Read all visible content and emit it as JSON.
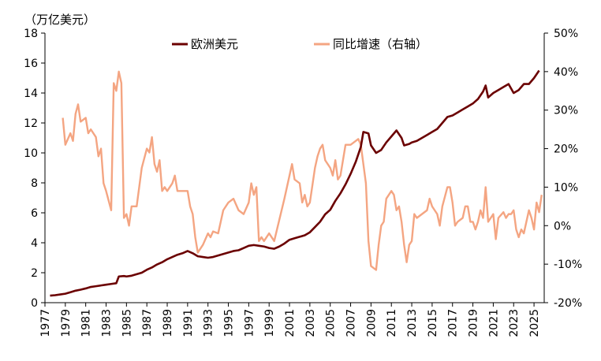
{
  "chart_data": {
    "type": "line",
    "left_axis": {
      "unit_label": "（万亿美元）",
      "ylim": [
        0,
        18
      ],
      "ticks": [
        "0",
        "2",
        "4",
        "6",
        "8",
        "10",
        "12",
        "14",
        "16",
        "18"
      ]
    },
    "right_axis": {
      "ylim": [
        -20,
        50
      ],
      "ticks": [
        {
          "label": "-20%",
          "color": "#ff0000"
        },
        {
          "label": "-10%",
          "color": "#ff0000"
        },
        {
          "label": "0%",
          "color": "#000000"
        },
        {
          "label": "10%",
          "color": "#000000"
        },
        {
          "label": "20%",
          "color": "#000000"
        },
        {
          "label": "30%",
          "color": "#000000"
        },
        {
          "label": "40%",
          "color": "#000000"
        },
        {
          "label": "50%",
          "color": "#000000"
        }
      ]
    },
    "x_axis": {
      "xlim": [
        1977,
        2026
      ],
      "ticks": [
        "1977",
        "1979",
        "1981",
        "1983",
        "1985",
        "1987",
        "1989",
        "1991",
        "1993",
        "1995",
        "1997",
        "1999",
        "2001",
        "2003",
        "2005",
        "2007",
        "2009",
        "2011",
        "2013",
        "2015",
        "2017",
        "2019",
        "2021",
        "2023",
        "2025"
      ]
    },
    "legend_position": "top",
    "series": [
      {
        "name": "欧洲美元",
        "axis": "left",
        "color": "#6b0000",
        "points": [
          [
            1977.5,
            0.47
          ],
          [
            1978.0,
            0.5
          ],
          [
            1978.5,
            0.55
          ],
          [
            1979.0,
            0.6
          ],
          [
            1979.5,
            0.7
          ],
          [
            1980.0,
            0.8
          ],
          [
            1980.5,
            0.87
          ],
          [
            1981.0,
            0.95
          ],
          [
            1981.5,
            1.05
          ],
          [
            1982.0,
            1.1
          ],
          [
            1982.5,
            1.15
          ],
          [
            1983.0,
            1.2
          ],
          [
            1983.5,
            1.25
          ],
          [
            1984.0,
            1.3
          ],
          [
            1984.25,
            1.75
          ],
          [
            1984.75,
            1.78
          ],
          [
            1985.0,
            1.75
          ],
          [
            1985.5,
            1.8
          ],
          [
            1986.0,
            1.9
          ],
          [
            1986.5,
            2.0
          ],
          [
            1987.0,
            2.2
          ],
          [
            1987.5,
            2.35
          ],
          [
            1988.0,
            2.55
          ],
          [
            1988.5,
            2.7
          ],
          [
            1989.0,
            2.9
          ],
          [
            1989.5,
            3.05
          ],
          [
            1990.0,
            3.2
          ],
          [
            1990.5,
            3.3
          ],
          [
            1991.0,
            3.45
          ],
          [
            1991.5,
            3.3
          ],
          [
            1992.0,
            3.1
          ],
          [
            1992.5,
            3.05
          ],
          [
            1993.0,
            3.0
          ],
          [
            1993.5,
            3.05
          ],
          [
            1994.0,
            3.15
          ],
          [
            1994.5,
            3.25
          ],
          [
            1995.0,
            3.35
          ],
          [
            1995.5,
            3.45
          ],
          [
            1996.0,
            3.5
          ],
          [
            1996.5,
            3.65
          ],
          [
            1997.0,
            3.8
          ],
          [
            1997.5,
            3.85
          ],
          [
            1998.0,
            3.8
          ],
          [
            1998.5,
            3.75
          ],
          [
            1999.0,
            3.65
          ],
          [
            1999.5,
            3.6
          ],
          [
            2000.0,
            3.75
          ],
          [
            2000.5,
            3.95
          ],
          [
            2001.0,
            4.2
          ],
          [
            2001.5,
            4.3
          ],
          [
            2002.0,
            4.4
          ],
          [
            2002.5,
            4.5
          ],
          [
            2003.0,
            4.7
          ],
          [
            2003.5,
            5.05
          ],
          [
            2004.0,
            5.4
          ],
          [
            2004.5,
            5.9
          ],
          [
            2005.0,
            6.2
          ],
          [
            2005.5,
            6.8
          ],
          [
            2006.0,
            7.3
          ],
          [
            2006.5,
            7.9
          ],
          [
            2007.0,
            8.6
          ],
          [
            2007.5,
            9.4
          ],
          [
            2008.0,
            10.4
          ],
          [
            2008.25,
            11.4
          ],
          [
            2008.75,
            11.3
          ],
          [
            2009.0,
            10.5
          ],
          [
            2009.5,
            10.0
          ],
          [
            2010.0,
            10.2
          ],
          [
            2010.5,
            10.7
          ],
          [
            2011.0,
            11.1
          ],
          [
            2011.5,
            11.5
          ],
          [
            2012.0,
            11.0
          ],
          [
            2012.25,
            10.5
          ],
          [
            2012.75,
            10.6
          ],
          [
            2013.0,
            10.7
          ],
          [
            2013.5,
            10.8
          ],
          [
            2014.0,
            11.0
          ],
          [
            2014.5,
            11.2
          ],
          [
            2015.0,
            11.4
          ],
          [
            2015.5,
            11.6
          ],
          [
            2016.0,
            12.0
          ],
          [
            2016.5,
            12.4
          ],
          [
            2017.0,
            12.5
          ],
          [
            2017.5,
            12.7
          ],
          [
            2018.0,
            12.9
          ],
          [
            2018.5,
            13.1
          ],
          [
            2019.0,
            13.3
          ],
          [
            2019.5,
            13.6
          ],
          [
            2020.0,
            14.1
          ],
          [
            2020.25,
            14.5
          ],
          [
            2020.5,
            13.7
          ],
          [
            2021.0,
            14.0
          ],
          [
            2021.5,
            14.2
          ],
          [
            2022.0,
            14.4
          ],
          [
            2022.5,
            14.6
          ],
          [
            2023.0,
            14.0
          ],
          [
            2023.5,
            14.2
          ],
          [
            2024.0,
            14.6
          ],
          [
            2024.5,
            14.6
          ],
          [
            2025.0,
            15.0
          ],
          [
            2025.5,
            15.5
          ]
        ]
      },
      {
        "name": "同比增速（右轴）",
        "axis": "right",
        "color": "#f4a582",
        "points": [
          [
            1978.75,
            28.0
          ],
          [
            1979.0,
            21.0
          ],
          [
            1979.5,
            24.0
          ],
          [
            1979.75,
            22.0
          ],
          [
            1980.0,
            29.0
          ],
          [
            1980.25,
            31.5
          ],
          [
            1980.5,
            27.0
          ],
          [
            1981.0,
            28.0
          ],
          [
            1981.25,
            24.0
          ],
          [
            1981.5,
            25.0
          ],
          [
            1982.0,
            23.0
          ],
          [
            1982.25,
            18.0
          ],
          [
            1982.5,
            20.0
          ],
          [
            1982.75,
            11.0
          ],
          [
            1983.0,
            9.0
          ],
          [
            1983.5,
            4.0
          ],
          [
            1983.75,
            37.0
          ],
          [
            1984.0,
            35.0
          ],
          [
            1984.25,
            40.0
          ],
          [
            1984.5,
            37.0
          ],
          [
            1984.75,
            2.0
          ],
          [
            1985.0,
            3.0
          ],
          [
            1985.25,
            0.0
          ],
          [
            1985.5,
            5.0
          ],
          [
            1986.0,
            5.0
          ],
          [
            1986.5,
            15.0
          ],
          [
            1987.0,
            20.0
          ],
          [
            1987.25,
            19.0
          ],
          [
            1987.5,
            23.0
          ],
          [
            1987.75,
            16.0
          ],
          [
            1988.0,
            14.0
          ],
          [
            1988.25,
            17.0
          ],
          [
            1988.5,
            9.0
          ],
          [
            1988.75,
            10.0
          ],
          [
            1989.0,
            9.0
          ],
          [
            1989.5,
            11.0
          ],
          [
            1989.75,
            13.0
          ],
          [
            1990.0,
            9.0
          ],
          [
            1990.5,
            9.0
          ],
          [
            1991.0,
            9.0
          ],
          [
            1991.25,
            5.0
          ],
          [
            1991.5,
            3.0
          ],
          [
            1991.75,
            -3.0
          ],
          [
            1992.0,
            -7.0
          ],
          [
            1992.5,
            -5.0
          ],
          [
            1993.0,
            -2.0
          ],
          [
            1993.25,
            -3.0
          ],
          [
            1993.5,
            -1.5
          ],
          [
            1994.0,
            -2.0
          ],
          [
            1994.5,
            4.0
          ],
          [
            1995.0,
            6.0
          ],
          [
            1995.5,
            7.0
          ],
          [
            1996.0,
            4.0
          ],
          [
            1996.5,
            3.0
          ],
          [
            1997.0,
            6.0
          ],
          [
            1997.25,
            11.0
          ],
          [
            1997.5,
            8.0
          ],
          [
            1997.75,
            10.0
          ],
          [
            1998.0,
            -4.0
          ],
          [
            1998.25,
            -3.0
          ],
          [
            1998.5,
            -4.0
          ],
          [
            1998.75,
            -3.0
          ],
          [
            1999.0,
            -2.0
          ],
          [
            1999.5,
            -4.0
          ],
          [
            2000.0,
            1.5
          ],
          [
            2000.5,
            7.0
          ],
          [
            2001.0,
            13.0
          ],
          [
            2001.25,
            16.0
          ],
          [
            2001.5,
            12.0
          ],
          [
            2002.0,
            11.0
          ],
          [
            2002.25,
            6.0
          ],
          [
            2002.5,
            8.0
          ],
          [
            2002.75,
            5.0
          ],
          [
            2003.0,
            6.0
          ],
          [
            2003.5,
            15.0
          ],
          [
            2003.75,
            18.0
          ],
          [
            2004.0,
            20.0
          ],
          [
            2004.25,
            21.0
          ],
          [
            2004.5,
            17.0
          ],
          [
            2005.0,
            15.0
          ],
          [
            2005.25,
            13.0
          ],
          [
            2005.5,
            17.0
          ],
          [
            2005.75,
            12.0
          ],
          [
            2006.0,
            13.0
          ],
          [
            2006.5,
            21.0
          ],
          [
            2007.0,
            21.0
          ],
          [
            2007.5,
            22.0
          ],
          [
            2007.75,
            22.5
          ],
          [
            2008.0,
            21.0
          ],
          [
            2008.25,
            16.0
          ],
          [
            2008.5,
            11.0
          ],
          [
            2008.75,
            -4.0
          ],
          [
            2009.0,
            -10.5
          ],
          [
            2009.5,
            -11.5
          ],
          [
            2009.75,
            -5.0
          ],
          [
            2010.0,
            0.0
          ],
          [
            2010.25,
            1.0
          ],
          [
            2010.5,
            7.0
          ],
          [
            2011.0,
            9.0
          ],
          [
            2011.25,
            8.0
          ],
          [
            2011.5,
            4.0
          ],
          [
            2011.75,
            5.0
          ],
          [
            2012.0,
            1.0
          ],
          [
            2012.25,
            -5.0
          ],
          [
            2012.5,
            -9.5
          ],
          [
            2012.75,
            -5.0
          ],
          [
            2013.0,
            -4.0
          ],
          [
            2013.25,
            3.0
          ],
          [
            2013.5,
            2.0
          ],
          [
            2014.0,
            3.0
          ],
          [
            2014.5,
            4.0
          ],
          [
            2014.75,
            7.0
          ],
          [
            2015.0,
            5.0
          ],
          [
            2015.5,
            3.0
          ],
          [
            2015.75,
            0.0
          ],
          [
            2016.0,
            5.0
          ],
          [
            2016.5,
            10.0
          ],
          [
            2016.75,
            10.0
          ],
          [
            2017.0,
            6.0
          ],
          [
            2017.25,
            0.0
          ],
          [
            2017.5,
            1.0
          ],
          [
            2018.0,
            2.0
          ],
          [
            2018.25,
            5.0
          ],
          [
            2018.5,
            5.0
          ],
          [
            2018.75,
            1.0
          ],
          [
            2019.0,
            1.0
          ],
          [
            2019.25,
            -1.0
          ],
          [
            2019.5,
            1.0
          ],
          [
            2019.75,
            4.0
          ],
          [
            2020.0,
            2.0
          ],
          [
            2020.25,
            10.0
          ],
          [
            2020.5,
            1.0
          ],
          [
            2020.75,
            2.0
          ],
          [
            2021.0,
            3.0
          ],
          [
            2021.25,
            -3.5
          ],
          [
            2021.5,
            2.0
          ],
          [
            2022.0,
            3.5
          ],
          [
            2022.25,
            2.0
          ],
          [
            2022.5,
            3.0
          ],
          [
            2022.75,
            3.0
          ],
          [
            2023.0,
            4.0
          ],
          [
            2023.25,
            -1.0
          ],
          [
            2023.5,
            -3.0
          ],
          [
            2023.75,
            -1.0
          ],
          [
            2024.0,
            -2.0
          ],
          [
            2024.5,
            4.0
          ],
          [
            2024.75,
            2.0
          ],
          [
            2025.0,
            -1.0
          ],
          [
            2025.25,
            6.0
          ],
          [
            2025.5,
            3.5
          ],
          [
            2025.75,
            8.0
          ]
        ]
      }
    ]
  }
}
